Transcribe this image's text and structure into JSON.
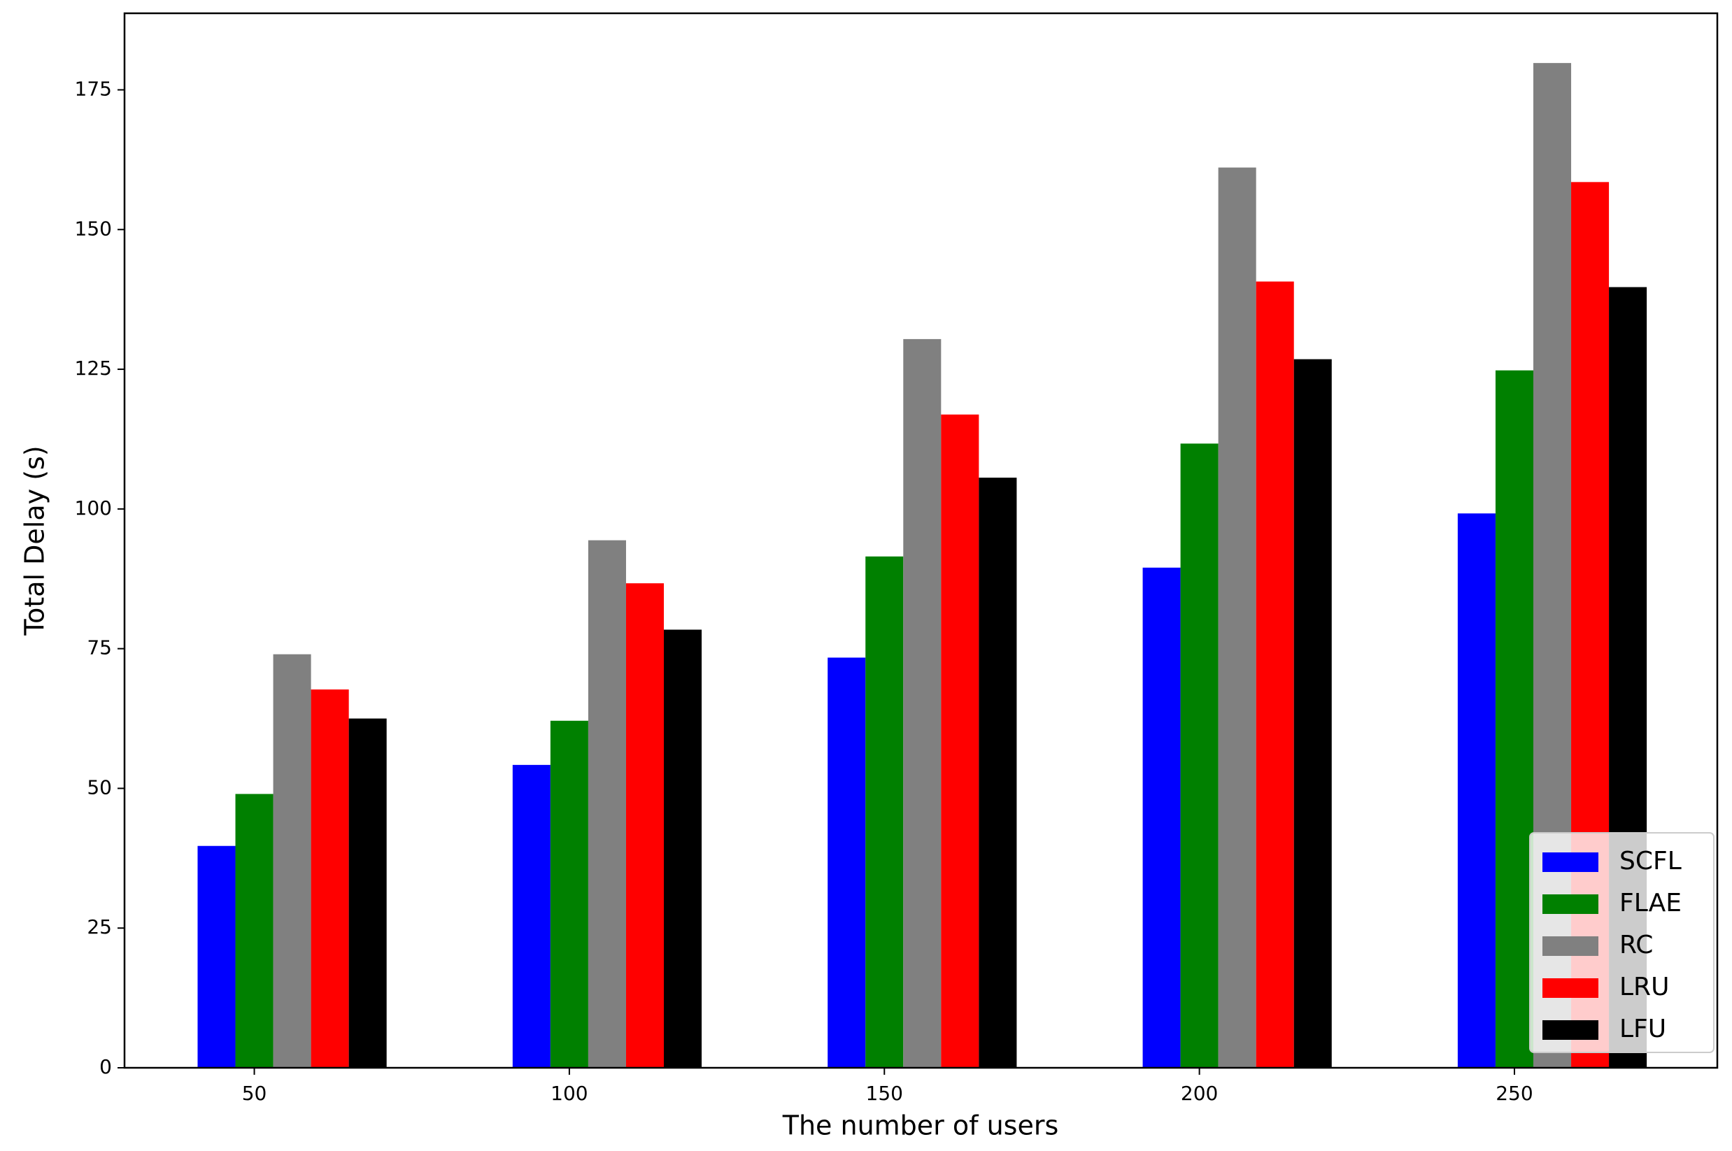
{
  "chart_data": {
    "type": "bar",
    "x_label": "The number of users",
    "y_label": "Total Delay (s)",
    "x": [
      50,
      100,
      150,
      200,
      250
    ],
    "series": [
      {
        "name": "SCFL",
        "color": "#0000ff",
        "values": [
          39.7,
          54.2,
          73.4,
          89.5,
          99.2
        ]
      },
      {
        "name": "FLAE",
        "color": "#008000",
        "values": [
          49.0,
          62.1,
          91.5,
          111.7,
          124.8
        ]
      },
      {
        "name": "RC",
        "color": "#808080",
        "values": [
          74.0,
          94.4,
          130.4,
          161.1,
          179.8
        ]
      },
      {
        "name": "LRU",
        "color": "#ff0000",
        "values": [
          67.7,
          86.7,
          116.9,
          140.7,
          158.5
        ]
      },
      {
        "name": "LFU",
        "color": "#000000",
        "values": [
          62.5,
          78.4,
          105.6,
          126.8,
          139.7
        ]
      }
    ],
    "xlim": [
      29.4,
      282.2
    ],
    "xticks": [
      50,
      100,
      150,
      200,
      250
    ],
    "ylim": [
      0,
      188.7
    ],
    "yticks": [
      0,
      25,
      50,
      75,
      100,
      125,
      150,
      175
    ],
    "legend": "lower right"
  }
}
